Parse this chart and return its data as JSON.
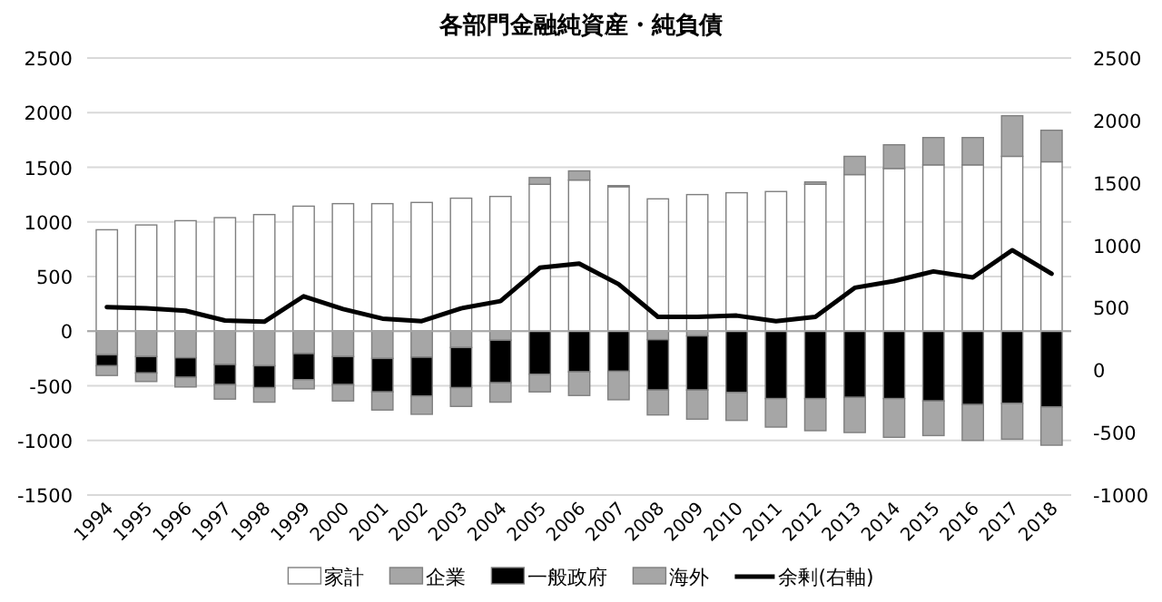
{
  "chart_data": {
    "type": "bar",
    "title": "各部門金融純資産・純負債",
    "stacked": true,
    "grid": "y",
    "legend": "bottom",
    "categories": [
      "1994",
      "1995",
      "1996",
      "1997",
      "1998",
      "1999",
      "2000",
      "2001",
      "2002",
      "2003",
      "2004",
      "2005",
      "2006",
      "2007",
      "2008",
      "2009",
      "2010",
      "2011",
      "2012",
      "2013",
      "2014",
      "2015",
      "2016",
      "2017",
      "2018"
    ],
    "ylim": [
      -1500,
      2500
    ],
    "yticks": [
      -1500,
      -1000,
      -500,
      0,
      500,
      1000,
      1500,
      2000,
      2500
    ],
    "y2lim": [
      -1000,
      2500
    ],
    "y2ticks": [
      -1000,
      -500,
      0,
      500,
      1000,
      1500,
      2000,
      2500
    ],
    "series": [
      {
        "name": "家計",
        "color": "#ffffff",
        "values": [
          928,
          972,
          1011,
          1039,
          1067,
          1144,
          1167,
          1167,
          1178,
          1217,
          1233,
          1344,
          1383,
          1322,
          1211,
          1250,
          1267,
          1278,
          1344,
          1433,
          1489,
          1522,
          1522,
          1600,
          1550
        ]
      },
      {
        "name": "企業",
        "color": "#a6a6a6",
        "values": [
          -217,
          -233,
          -244,
          -306,
          -317,
          -206,
          -233,
          -250,
          -239,
          -150,
          -83,
          62,
          84,
          10,
          -78,
          -44,
          0,
          0,
          22,
          167,
          217,
          250,
          250,
          372,
          289
        ]
      },
      {
        "name": "一般政府",
        "color": "#000000",
        "values": [
          -100,
          -150,
          -178,
          -183,
          -200,
          -238,
          -256,
          -306,
          -355,
          -367,
          -389,
          -394,
          -372,
          -367,
          -461,
          -495,
          -561,
          -617,
          -617,
          -606,
          -617,
          -639,
          -672,
          -661,
          -694
        ]
      },
      {
        "name": "海外",
        "color": "#a6a6a6",
        "values": [
          -89,
          -78,
          -89,
          -133,
          -133,
          -84,
          -150,
          -166,
          -167,
          -172,
          -178,
          -162,
          -217,
          -261,
          -228,
          -267,
          -256,
          -261,
          -294,
          -322,
          -355,
          -317,
          -328,
          -328,
          -350
        ]
      },
      {
        "name": "余剰(右軸)",
        "color": "#000000",
        "type": "line",
        "axis": "y2",
        "values": [
          505,
          495,
          476,
          398,
          388,
          592,
          490,
          413,
          393,
          495,
          553,
          820,
          854,
          689,
          427,
          427,
          437,
          393,
          427,
          660,
          714,
          791,
          743,
          961,
          772
        ]
      }
    ]
  }
}
